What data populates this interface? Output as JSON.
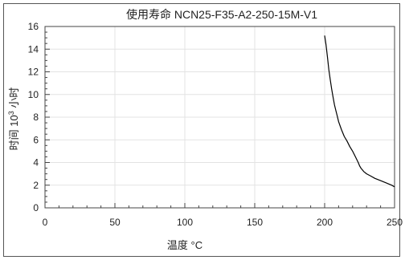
{
  "chart_data": {
    "type": "line",
    "title": "使用寿命 NCN25-F35-A2-250-15M-V1",
    "xlabel": "温度 °C",
    "ylabel_prefix": "时间 10",
    "ylabel_sup": "3",
    "ylabel_suffix": " 小时",
    "xlim": [
      0,
      250
    ],
    "ylim": [
      0,
      16
    ],
    "x_ticks": [
      "0",
      "50",
      "100",
      "150",
      "200",
      "250"
    ],
    "y_ticks": [
      "0",
      "2",
      "4",
      "6",
      "8",
      "10",
      "12",
      "14",
      "16"
    ],
    "grid": true,
    "line_color": "#000000",
    "grid_color": "#e3e3e3",
    "series": [
      {
        "x": [
          200,
          201,
          202,
          203,
          204,
          205,
          206,
          207,
          208,
          209,
          210,
          212,
          214,
          216,
          218,
          220,
          222,
          224,
          225,
          226,
          228,
          230,
          233,
          236,
          240,
          244,
          248,
          250
        ],
        "y": [
          15.2,
          14.4,
          13.3,
          12.2,
          11.3,
          10.5,
          9.8,
          9.1,
          8.6,
          8.1,
          7.6,
          6.9,
          6.3,
          5.9,
          5.4,
          5.0,
          4.5,
          4.0,
          3.7,
          3.5,
          3.2,
          3.0,
          2.8,
          2.6,
          2.4,
          2.2,
          2.0,
          1.85
        ]
      }
    ]
  }
}
